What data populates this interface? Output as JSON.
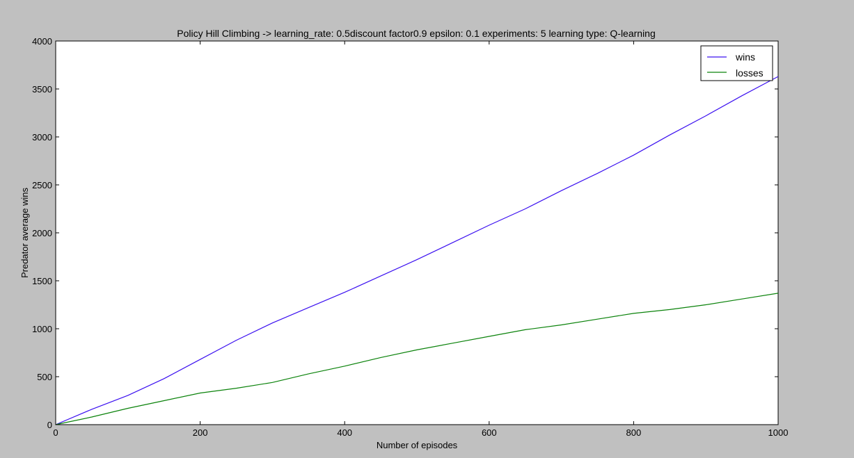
{
  "chart_data": {
    "type": "line",
    "title": "Policy Hill Climbing -> learning_rate: 0.5discount factor0.9 epsilon: 0.1 experiments: 5 learning type: Q-learning",
    "xlabel": "Number of episodes",
    "ylabel": "Predator average wins",
    "xlim": [
      0,
      1000
    ],
    "ylim": [
      0,
      4000
    ],
    "xticks": [
      0,
      200,
      400,
      600,
      800,
      1000
    ],
    "yticks": [
      0,
      500,
      1000,
      1500,
      2000,
      2500,
      3000,
      3500,
      4000
    ],
    "grid": false,
    "legend_position": "top-right",
    "x": [
      0,
      50,
      100,
      150,
      200,
      250,
      300,
      350,
      400,
      450,
      500,
      550,
      600,
      650,
      700,
      750,
      800,
      850,
      900,
      950,
      1000
    ],
    "series": [
      {
        "name": "wins",
        "color": "#3b10f0",
        "values": [
          0,
          160,
          305,
          480,
          680,
          880,
          1060,
          1220,
          1380,
          1550,
          1720,
          1900,
          2080,
          2250,
          2440,
          2620,
          2810,
          3020,
          3220,
          3430,
          3630
        ]
      },
      {
        "name": "losses",
        "color": "#0a820a",
        "values": [
          0,
          80,
          170,
          250,
          330,
          380,
          440,
          530,
          610,
          700,
          780,
          850,
          920,
          990,
          1040,
          1100,
          1160,
          1200,
          1250,
          1310,
          1370
        ]
      }
    ]
  }
}
